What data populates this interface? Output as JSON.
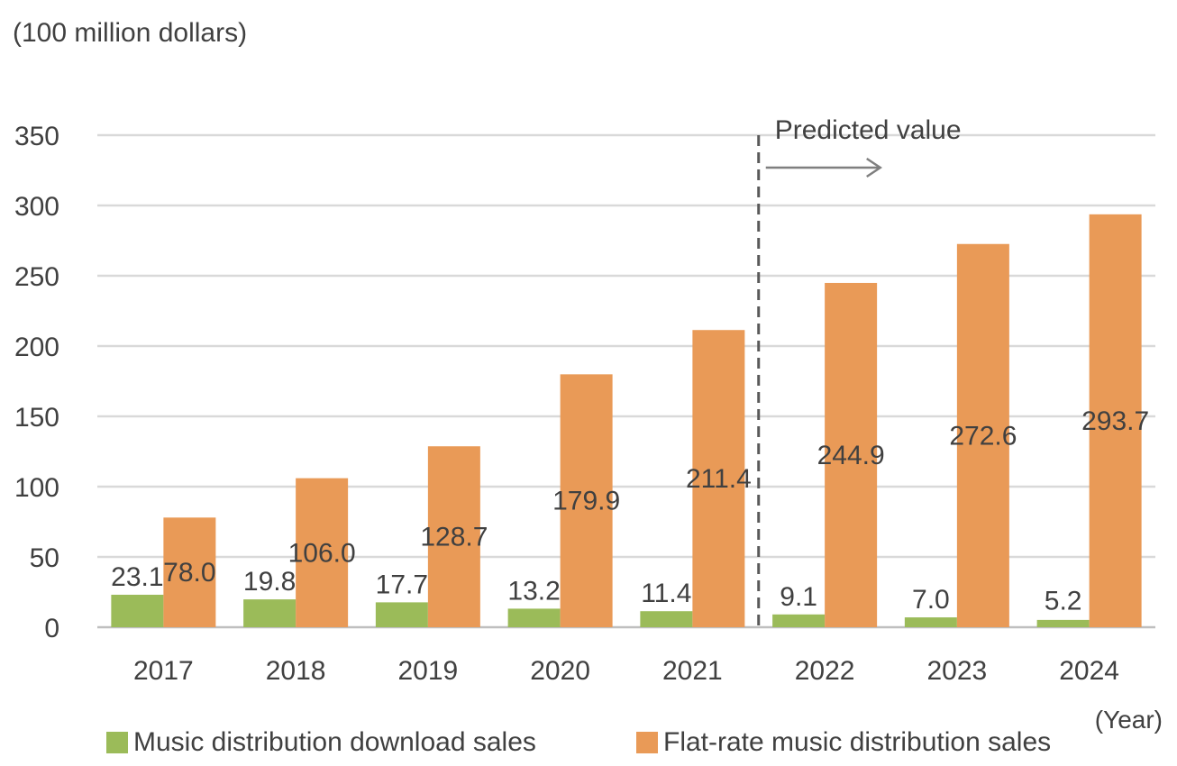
{
  "chart_data": {
    "type": "bar",
    "ylabel": "(100 million dollars)",
    "xlabel": "(Year)",
    "ylim": [
      0,
      350
    ],
    "yticks": [
      0,
      50,
      100,
      150,
      200,
      250,
      300,
      350
    ],
    "grid": true,
    "legend_position": "bottom",
    "categories": [
      "2017",
      "2018",
      "2019",
      "2020",
      "2021",
      "2022",
      "2023",
      "2024"
    ],
    "series": [
      {
        "name": "Music distribution download sales",
        "color": "#9BBB59",
        "values": [
          23.1,
          19.8,
          17.7,
          13.2,
          11.4,
          9.1,
          7.0,
          5.2
        ],
        "labels": [
          "23.1",
          "19.8",
          "17.7",
          "13.2",
          "11.4",
          "9.1",
          "7.0",
          "5.2"
        ]
      },
      {
        "name": "Flat-rate music distribution sales",
        "color": "#E99A57",
        "values": [
          78.0,
          106.0,
          128.7,
          179.9,
          211.4,
          244.9,
          272.6,
          293.7
        ],
        "labels": [
          "78.0",
          "106.0",
          "128.7",
          "179.9",
          "211.4",
          "244.9",
          "272.6",
          "293.7"
        ]
      }
    ],
    "annotation": {
      "text": "Predicted value",
      "between_categories": [
        "2021",
        "2022"
      ]
    }
  }
}
